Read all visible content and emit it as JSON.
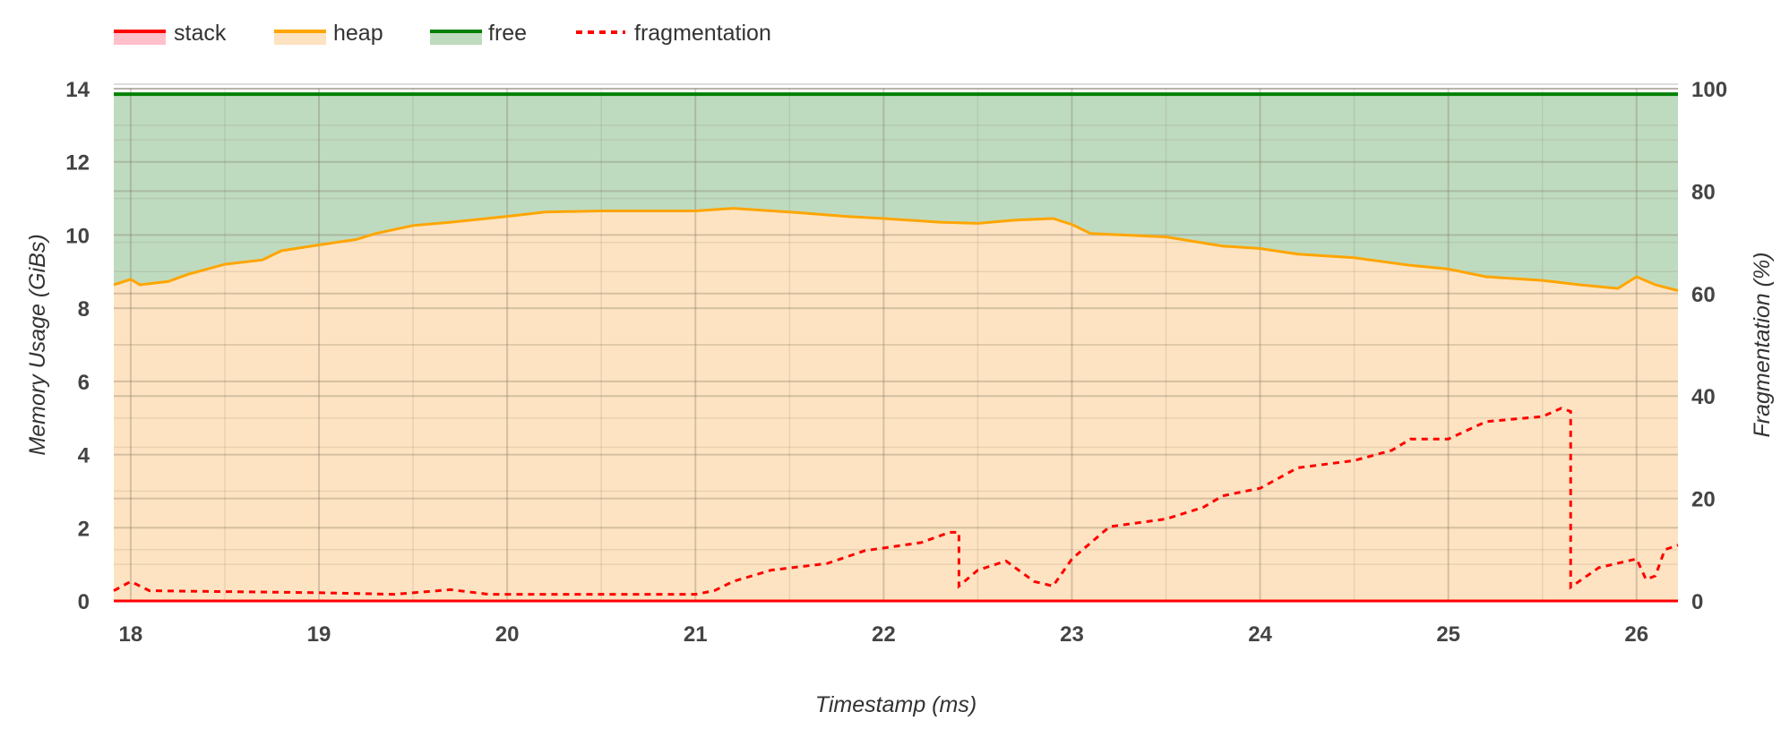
{
  "chart_data": {
    "type": "area",
    "xlabel": "Timestamp (ms)",
    "ylabel": "Memory Usage (GiBs)",
    "y2label": "Fragmentation (%)",
    "xlim": [
      17.91,
      26.22
    ],
    "ylim": [
      0,
      14
    ],
    "y2lim": [
      0,
      100
    ],
    "xticks": [
      "18",
      "19",
      "20",
      "21",
      "22",
      "23",
      "24",
      "25",
      "26"
    ],
    "yticks": [
      "0",
      "2",
      "4",
      "6",
      "8",
      "10",
      "12",
      "14"
    ],
    "y2ticks": [
      "0",
      "20",
      "40",
      "60",
      "80",
      "100"
    ],
    "grid": true,
    "legend_position": "top-left",
    "colors": {
      "stack": "#ff0000",
      "stack_fill": "#ffc0cb",
      "heap": "#ffa500",
      "heap_fill": "#fde3c1",
      "free": "#008000",
      "free_fill": "#bfdbbf",
      "fragmentation": "#ff0000"
    },
    "series": [
      {
        "name": "stack",
        "axis": "left",
        "style": "area",
        "x": [
          17.91,
          26.22
        ],
        "y": [
          0,
          0
        ]
      },
      {
        "name": "heap",
        "axis": "left",
        "style": "area",
        "x": [
          17.91,
          18.0,
          18.05,
          18.2,
          18.3,
          18.5,
          18.7,
          18.8,
          19.0,
          19.2,
          19.3,
          19.5,
          19.7,
          20.0,
          20.2,
          20.5,
          21.0,
          21.2,
          21.5,
          21.8,
          22.0,
          22.3,
          22.5,
          22.7,
          22.9,
          23.0,
          23.1,
          23.5,
          23.8,
          24.0,
          24.2,
          24.5,
          24.8,
          25.0,
          25.2,
          25.5,
          25.7,
          25.9,
          26.0,
          26.1,
          26.22
        ],
        "y": [
          8.64,
          8.79,
          8.64,
          8.73,
          8.92,
          9.2,
          9.32,
          9.57,
          9.73,
          9.88,
          10.04,
          10.26,
          10.35,
          10.51,
          10.63,
          10.66,
          10.66,
          10.73,
          10.63,
          10.51,
          10.45,
          10.35,
          10.32,
          10.41,
          10.45,
          10.29,
          10.04,
          9.95,
          9.7,
          9.63,
          9.48,
          9.38,
          9.17,
          9.07,
          8.86,
          8.76,
          8.64,
          8.54,
          8.86,
          8.64,
          8.48
        ]
      },
      {
        "name": "free",
        "axis": "left",
        "style": "area",
        "x": [
          17.91,
          26.22
        ],
        "y": [
          13.85,
          13.85
        ]
      },
      {
        "name": "fragmentation",
        "axis": "right",
        "style": "dashed-line",
        "x": [
          17.91,
          18.0,
          18.1,
          19.0,
          19.4,
          19.7,
          19.9,
          21.0,
          21.1,
          21.2,
          21.4,
          21.7,
          21.9,
          22.2,
          22.35,
          22.4,
          22.4,
          22.5,
          22.65,
          22.8,
          22.9,
          23.0,
          23.2,
          23.5,
          23.7,
          23.8,
          24.0,
          24.2,
          24.5,
          24.7,
          24.8,
          25.0,
          25.2,
          25.5,
          25.6,
          25.65,
          25.65,
          25.8,
          26.0,
          26.05,
          26.1,
          26.15,
          26.22
        ],
        "y": [
          2.0,
          3.8,
          2.0,
          1.6,
          1.3,
          2.2,
          1.3,
          1.3,
          2.0,
          3.8,
          6.0,
          7.3,
          9.8,
          11.4,
          13.4,
          13.4,
          2.9,
          6.0,
          7.8,
          3.8,
          2.9,
          8.2,
          14.5,
          16.0,
          18.3,
          20.5,
          22.0,
          26.0,
          27.4,
          29.4,
          31.6,
          31.6,
          35.0,
          36.0,
          37.6,
          37.0,
          2.7,
          6.5,
          8.2,
          4.2,
          4.9,
          10.0,
          10.9
        ]
      }
    ]
  }
}
